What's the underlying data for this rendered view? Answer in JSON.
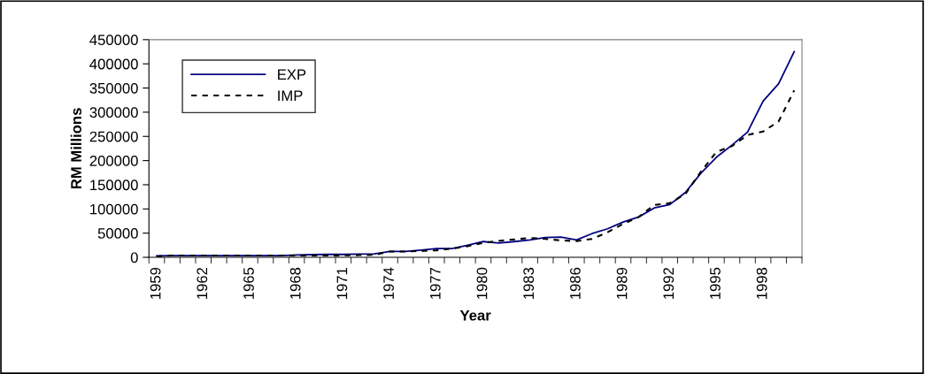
{
  "chart_data": {
    "type": "line",
    "xlabel": "Year",
    "ylabel": "RM Millions",
    "categories": [
      "1959",
      null,
      null,
      "1962",
      null,
      null,
      "1965",
      null,
      null,
      "1968",
      null,
      null,
      "1971",
      null,
      null,
      "1974",
      null,
      null,
      "1977",
      null,
      null,
      "1980",
      null,
      null,
      "1983",
      null,
      null,
      "1986",
      null,
      null,
      "1989",
      null,
      null,
      "1992",
      null,
      null,
      "1995",
      null,
      null,
      "1998",
      null,
      null
    ],
    "series": [
      {
        "name": "EXP",
        "color": "#000080",
        "line_style": "solid",
        "values": [
          3000,
          3500,
          3500,
          3500,
          3500,
          3500,
          3500,
          3500,
          3500,
          5000,
          5500,
          6000,
          6000,
          6500,
          7000,
          12000,
          12000,
          15000,
          18000,
          18000,
          25000,
          32500,
          29500,
          32500,
          36000,
          41000,
          42000,
          36000,
          49000,
          59000,
          73000,
          83500,
          102000,
          109000,
          134000,
          174000,
          207000,
          232000,
          259000,
          323000,
          359000,
          425000
        ]
      },
      {
        "name": "IMP",
        "color": "#000000",
        "line_style": "dashed",
        "values": [
          2000,
          3600,
          3600,
          3600,
          3600,
          3600,
          3600,
          3600,
          3600,
          3600,
          3600,
          4000,
          4000,
          4500,
          5000,
          12000,
          12000,
          13000,
          14500,
          18000,
          23000,
          30000,
          34000,
          37000,
          40000,
          38000,
          35000,
          33500,
          38000,
          52000,
          69000,
          83500,
          108000,
          112000,
          131000,
          177000,
          218000,
          230000,
          253000,
          260000,
          281000,
          345000
        ]
      }
    ],
    "ylim": [
      0,
      450000
    ],
    "yticks": [
      0,
      50000,
      100000,
      150000,
      200000,
      250000,
      300000,
      350000,
      400000,
      450000
    ],
    "grid": false,
    "legend": "top left"
  }
}
